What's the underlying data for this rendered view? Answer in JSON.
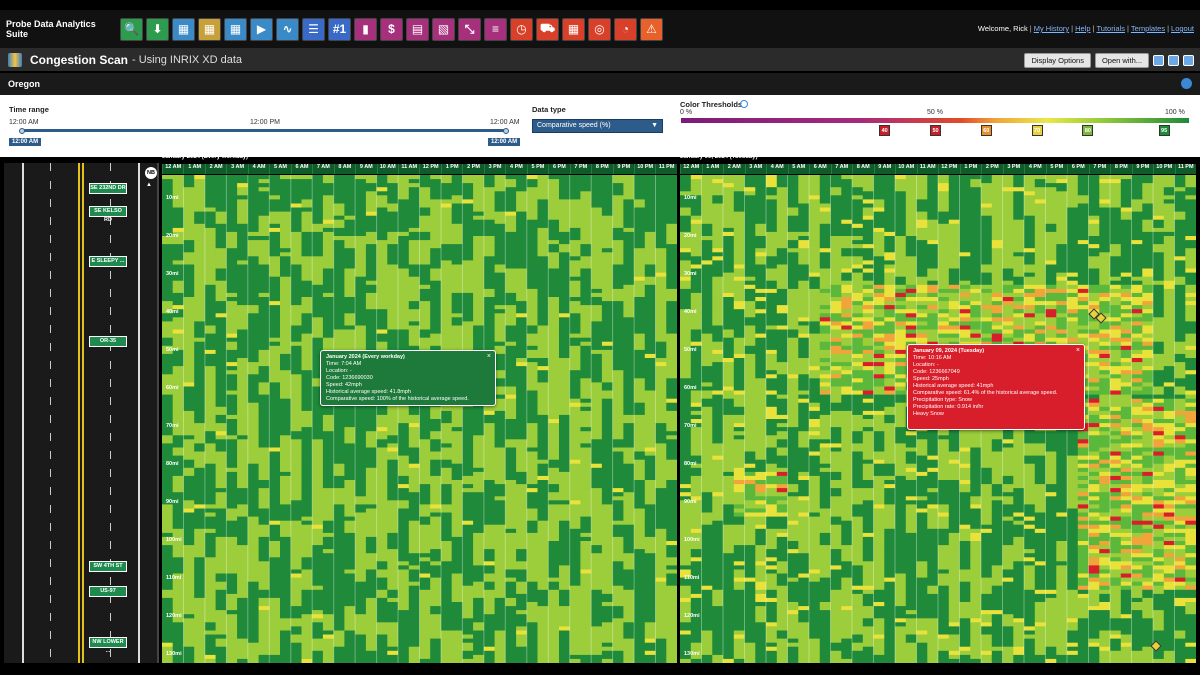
{
  "app": {
    "brand": "Probe Data Analytics Suite",
    "tools": [
      {
        "icon": "search-icon",
        "glyph": "🔍",
        "bg": "#2e9c4e"
      },
      {
        "icon": "download-icon",
        "glyph": "⬇",
        "bg": "#2e9c4e"
      },
      {
        "icon": "bottleneck-icon",
        "glyph": "▦",
        "bg": "#3a8ac8"
      },
      {
        "icon": "heatmap-icon",
        "glyph": "▦",
        "bg": "#c8a03a"
      },
      {
        "icon": "congestion-scan-icon",
        "glyph": "▦",
        "bg": "#3a8ac8"
      },
      {
        "icon": "play-icon",
        "glyph": "▶",
        "bg": "#3a8ac8"
      },
      {
        "icon": "trend-icon",
        "glyph": "∿",
        "bg": "#3a8ac8"
      },
      {
        "icon": "list-icon",
        "glyph": "☰",
        "bg": "#3a6ac8"
      },
      {
        "icon": "rank-icon",
        "glyph": "#1",
        "bg": "#3a6ac8"
      },
      {
        "icon": "bar-chart-icon",
        "glyph": "▮",
        "bg": "#a6307c"
      },
      {
        "icon": "dollar-icon",
        "glyph": "$",
        "bg": "#a6307c"
      },
      {
        "icon": "calendar-icon",
        "glyph": "▤",
        "bg": "#a6307c"
      },
      {
        "icon": "map-icon",
        "glyph": "▧",
        "bg": "#a6307c"
      },
      {
        "icon": "scatter-icon",
        "glyph": "⤡",
        "bg": "#a6307c"
      },
      {
        "icon": "timeline-icon",
        "glyph": "≡",
        "bg": "#a6307c"
      },
      {
        "icon": "clock-icon",
        "glyph": "◷",
        "bg": "#d8402a"
      },
      {
        "icon": "car-icon",
        "glyph": "⛟",
        "bg": "#d8402a"
      },
      {
        "icon": "grid-icon",
        "glyph": "▦",
        "bg": "#d8402a"
      },
      {
        "icon": "target-icon",
        "glyph": "◎",
        "bg": "#d8402a"
      },
      {
        "icon": "speedometer-icon",
        "glyph": "◔",
        "bg": "#d8402a"
      },
      {
        "icon": "incident-icon",
        "glyph": "⚠",
        "bg": "#e8602a"
      }
    ],
    "user": {
      "welcome": "Welcome, Rick",
      "links": [
        "My History",
        "Help",
        "Tutorials",
        "Templates",
        "Logout"
      ]
    }
  },
  "titlebar": {
    "title": "Congestion Scan",
    "subtitle": "- Using INRIX XD data",
    "display_options": "Display Options",
    "open_with": "Open with..."
  },
  "region": "Oregon",
  "controls": {
    "time_range_label": "Time range",
    "time_ticks": [
      "12:00 AM",
      "12:00 PM",
      "12:00 AM"
    ],
    "time_tags": [
      "12:00 AM",
      "12:00 AM"
    ],
    "data_type_label": "Data type",
    "data_type_value": "Comparative speed (%)",
    "thresholds_label": "Color Thresholds",
    "thr_0": "0 %",
    "thr_50": "50 %",
    "thr_100": "100 %",
    "thresholds": [
      {
        "value": "40",
        "color": "#c81e2a",
        "pos": 0.4
      },
      {
        "value": "50",
        "color": "#c81e2a",
        "pos": 0.5
      },
      {
        "value": "60",
        "color": "#e8902a",
        "pos": 0.6
      },
      {
        "value": "70",
        "color": "#e8d23a",
        "pos": 0.7
      },
      {
        "value": "80",
        "color": "#7ab83a",
        "pos": 0.8
      },
      {
        "value": "95",
        "color": "#1e8a3a",
        "pos": 0.95
      }
    ]
  },
  "road": {
    "compass": "NB",
    "direction": "NB",
    "signs": [
      "SE 232ND DR",
      "SE KELSO RD",
      "E SLEEPY ...",
      "OR-35",
      "SW 4TH ST",
      "US-97",
      "NW LOWER ..."
    ]
  },
  "panels": [
    {
      "title": "January 2024 (Every workday)",
      "hours": [
        "12 AM",
        "1 AM",
        "2 AM",
        "3 AM",
        "4 AM",
        "5 AM",
        "6 AM",
        "7 AM",
        "8 AM",
        "9 AM",
        "10 AM",
        "11 AM",
        "12 PM",
        "1 PM",
        "2 PM",
        "3 PM",
        "4 PM",
        "5 PM",
        "6 PM",
        "7 PM",
        "8 PM",
        "9 PM",
        "10 PM",
        "11 PM"
      ],
      "miles": [
        "10mi",
        "20mi",
        "30mi",
        "40mi",
        "50mi",
        "60mi",
        "70mi",
        "80mi",
        "90mi",
        "100mi",
        "110mi",
        "120mi",
        "130mi"
      ]
    },
    {
      "title": "January 09, 2024 (Tuesday)",
      "hours": [
        "12 AM",
        "1 AM",
        "2 AM",
        "3 AM",
        "4 AM",
        "5 AM",
        "6 AM",
        "7 AM",
        "8 AM",
        "9 AM",
        "10 AM",
        "11 AM",
        "12 PM",
        "1 PM",
        "2 PM",
        "3 PM",
        "4 PM",
        "5 PM",
        "6 PM",
        "7 PM",
        "8 PM",
        "9 PM",
        "10 PM",
        "11 PM"
      ],
      "miles": [
        "10mi",
        "20mi",
        "30mi",
        "40mi",
        "50mi",
        "60mi",
        "70mi",
        "80mi",
        "90mi",
        "100mi",
        "110mi",
        "120mi",
        "130mi"
      ]
    }
  ],
  "tooltips": [
    {
      "lines": [
        "January 2024 (Every workday)",
        "Time: 7:04 AM",
        "Location: -",
        "Code: 1236690030",
        "Speed: 42mph",
        "Historical average speed: 41.8mph",
        "Comparative speed: 100% of the historical average speed."
      ],
      "close": "×",
      "color": "#1e7a3a"
    },
    {
      "lines": [
        "January 09, 2024 (Tuesday)",
        "Time: 10:16 AM",
        "Location: -",
        "Code: 1236667049",
        "Speed: 25mph",
        "Historical average speed: 41mph",
        "Comparative speed: 61.4% of the historical average speed.",
        "Precipitation type: Snow",
        "Precipitation rate: 0.914 in/hr",
        "",
        "Heavy Snow"
      ],
      "close": "×",
      "color": "#d81e2a"
    }
  ],
  "colors": {
    "dark_green": "#1e8a3a",
    "green": "#5cb83a",
    "light_green": "#9ccd3a",
    "yellow": "#e8e23a",
    "orange": "#f0a43a",
    "red": "#d81e2a"
  }
}
